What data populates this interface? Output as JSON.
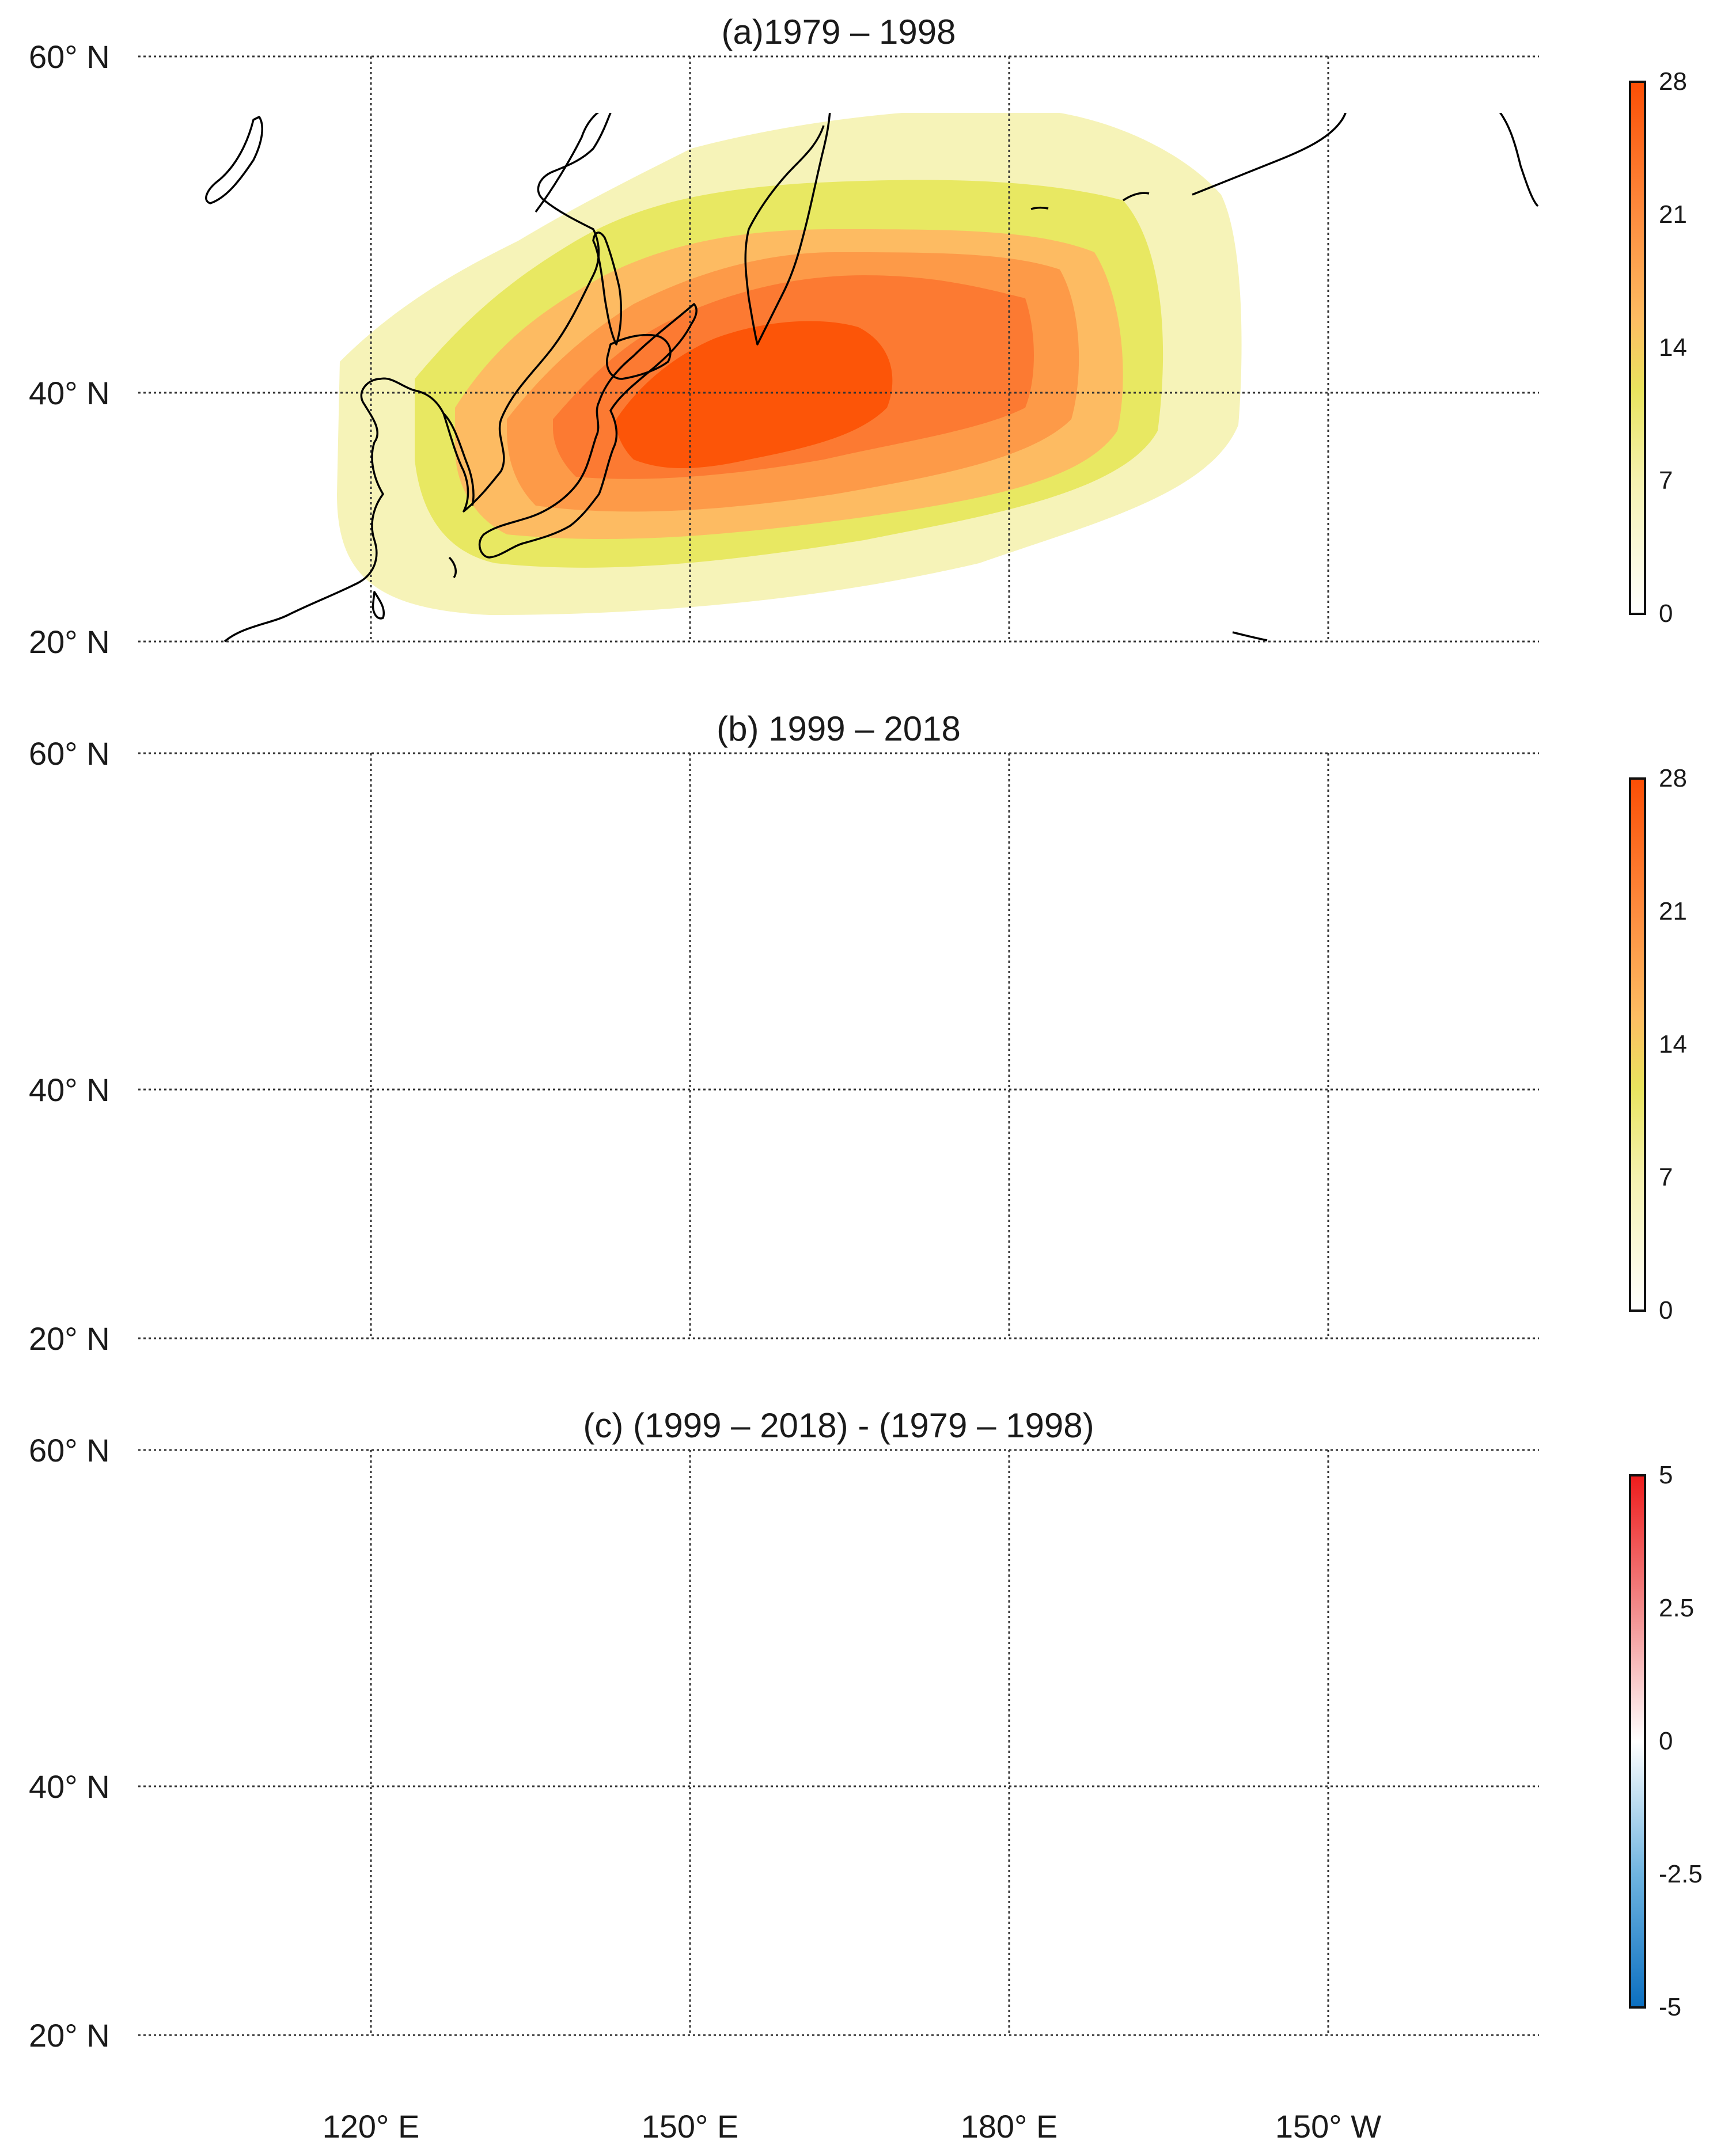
{
  "panels": [
    {
      "id": "a",
      "title": "(a)1979 – 1998",
      "colorbar": {
        "ticks": [
          "28",
          "21",
          "14",
          "7",
          "0"
        ]
      }
    },
    {
      "id": "b",
      "title": "(b) 1999 – 2018",
      "colorbar": {
        "ticks": [
          "28",
          "21",
          "14",
          "7",
          "0"
        ]
      }
    },
    {
      "id": "c",
      "title": "(c) (1999 – 2018) - (1979 – 1998)",
      "colorbar": {
        "ticks": [
          "5",
          "2.5",
          "0",
          "-2.5",
          "-5"
        ]
      }
    }
  ],
  "lat_labels": [
    "60° N",
    "40° N",
    "20° N"
  ],
  "lon_labels": [
    "120° E",
    "150° E",
    "180° E",
    "150° W"
  ],
  "colors": {
    "seq": [
      "#fdfce8",
      "#f6f3b8",
      "#e8e862",
      "#fdbb62",
      "#fd9a48",
      "#fc7a32",
      "#fc5508"
    ],
    "div_neg": "#0b6fc0",
    "div_pos": "#ee1c1c"
  }
}
